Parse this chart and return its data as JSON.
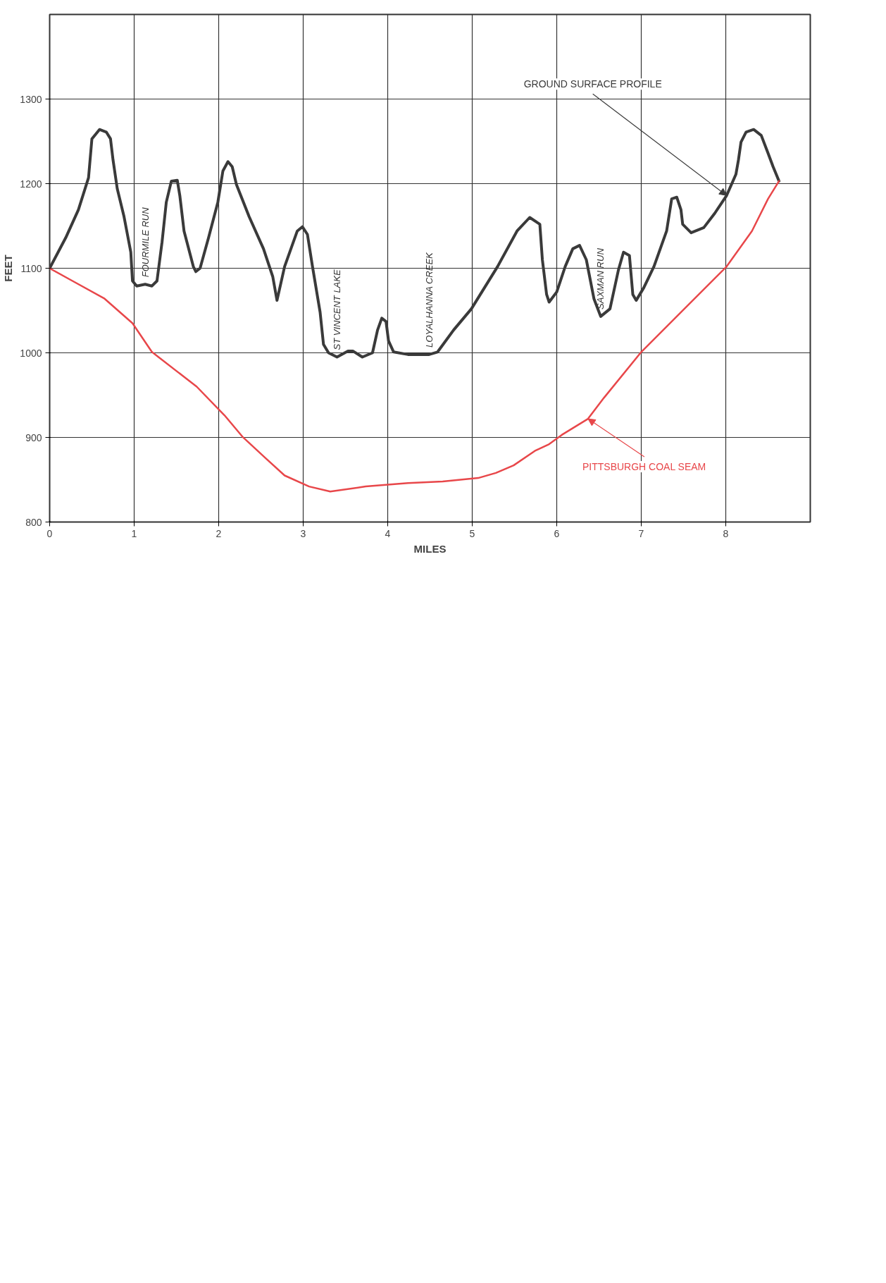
{
  "chart_data": {
    "type": "line",
    "xlabel": "MILES",
    "ylabel": "FEET",
    "xlim": [
      0,
      9
    ],
    "ylim": [
      800,
      1400
    ],
    "xticks": [
      0,
      1,
      2,
      3,
      4,
      5,
      6,
      7,
      8
    ],
    "yticks": [
      800,
      900,
      1000,
      1100,
      1200,
      1300
    ],
    "grid": true,
    "marker": "none",
    "line_style": "solid",
    "series": [
      {
        "name": "GROUND SURFACE PROFILE",
        "color": "#3a3a3a",
        "x": [
          0,
          0.19,
          0.34,
          0.46,
          0.5,
          0.59,
          0.67,
          0.72,
          0.75,
          0.8,
          0.88,
          0.96,
          0.98,
          1.03,
          1.13,
          1.21,
          1.27,
          1.33,
          1.38,
          1.44,
          1.51,
          1.54,
          1.59,
          1.7,
          1.73,
          1.78,
          1.88,
          1.99,
          2.05,
          2.11,
          2.16,
          2.21,
          2.36,
          2.53,
          2.64,
          2.69,
          2.78,
          2.93,
          2.99,
          3.05,
          3.11,
          3.2,
          3.24,
          3.3,
          3.4,
          3.53,
          3.59,
          3.7,
          3.82,
          3.88,
          3.93,
          3.98,
          4.01,
          4.07,
          4.24,
          4.49,
          4.59,
          4.78,
          4.99,
          5.3,
          5.53,
          5.68,
          5.8,
          5.83,
          5.88,
          5.91,
          6.0,
          6.1,
          6.19,
          6.27,
          6.35,
          6.44,
          6.52,
          6.63,
          6.73,
          6.79,
          6.86,
          6.9,
          6.94,
          7.03,
          7.15,
          7.3,
          7.36,
          7.42,
          7.47,
          7.49,
          7.59,
          7.74,
          7.87,
          8.01,
          8.12,
          8.15,
          8.18,
          8.24,
          8.33,
          8.42,
          8.5,
          8.56,
          8.63
        ],
        "values": [
          1100,
          1136,
          1169,
          1207,
          1253,
          1264,
          1261,
          1253,
          1228,
          1194,
          1161,
          1119,
          1085,
          1079,
          1081,
          1079,
          1085,
          1131,
          1178,
          1203,
          1204,
          1186,
          1144,
          1102,
          1096,
          1100,
          1136,
          1178,
          1215,
          1226,
          1220,
          1199,
          1161,
          1123,
          1090,
          1062,
          1102,
          1144,
          1149,
          1140,
          1102,
          1048,
          1010,
          1000,
          995,
          1002,
          1002,
          995,
          1000,
          1027,
          1041,
          1037,
          1014,
          1001,
          998,
          998,
          1001,
          1027,
          1052,
          1102,
          1144,
          1160,
          1152,
          1110,
          1069,
          1060,
          1072,
          1102,
          1123,
          1127,
          1110,
          1064,
          1043,
          1052,
          1098,
          1119,
          1115,
          1069,
          1062,
          1077,
          1102,
          1144,
          1182,
          1184,
          1169,
          1152,
          1142,
          1148,
          1165,
          1186,
          1211,
          1228,
          1249,
          1261,
          1264,
          1257,
          1236,
          1220,
          1203
        ]
      },
      {
        "name": "PITTSBURGH COAL SEAM",
        "color": "#e8474a",
        "x": [
          0,
          0.27,
          0.65,
          0.98,
          1.21,
          1.74,
          2.07,
          2.28,
          2.55,
          2.78,
          3.07,
          3.32,
          3.74,
          4.24,
          4.65,
          5.07,
          5.28,
          5.49,
          5.74,
          5.91,
          6.06,
          6.37,
          6.56,
          7.0,
          7.47,
          8.01,
          8.31,
          8.5,
          8.63
        ],
        "values": [
          1100,
          1085,
          1064,
          1035,
          1001,
          960,
          926,
          901,
          876,
          855,
          842,
          836,
          842,
          846,
          848,
          852,
          858,
          867,
          884,
          892,
          903,
          922,
          947,
          1001,
          1048,
          1102,
          1144,
          1182,
          1203
        ]
      }
    ],
    "annotations": [
      {
        "text": "FOURMILE RUN",
        "x": 1.13,
        "y": 1081
      },
      {
        "text": "ST  VINCENT LAKE",
        "x": 3.4,
        "y": 995
      },
      {
        "text": "LOYALHANNA CREEK",
        "x": 4.49,
        "y": 998
      },
      {
        "text": "SAXMAN RUN",
        "x": 6.52,
        "y": 1043
      }
    ]
  }
}
